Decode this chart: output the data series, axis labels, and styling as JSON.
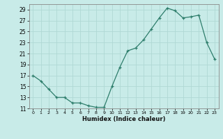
{
  "x": [
    0,
    1,
    2,
    3,
    4,
    5,
    6,
    7,
    8,
    9,
    10,
    11,
    12,
    13,
    14,
    15,
    16,
    17,
    18,
    19,
    20,
    21,
    22,
    23
  ],
  "y": [
    17,
    16,
    14.5,
    13,
    13,
    12,
    12,
    11.5,
    11.2,
    11.2,
    15,
    18.5,
    21.5,
    22,
    23.5,
    25.5,
    27.5,
    29.3,
    28.8,
    27.5,
    27.7,
    28.0,
    23.0,
    20.0
  ],
  "xlabel": "Humidex (Indice chaleur)",
  "line_color": "#2d7d6b",
  "bg_color": "#c8ebe8",
  "grid_color": "#b0d8d4",
  "ylim": [
    11,
    30
  ],
  "xlim": [
    -0.5,
    23.5
  ],
  "yticks": [
    11,
    13,
    15,
    17,
    19,
    21,
    23,
    25,
    27,
    29
  ],
  "xticks": [
    0,
    1,
    2,
    3,
    4,
    5,
    6,
    7,
    8,
    9,
    10,
    11,
    12,
    13,
    14,
    15,
    16,
    17,
    18,
    19,
    20,
    21,
    22,
    23
  ]
}
